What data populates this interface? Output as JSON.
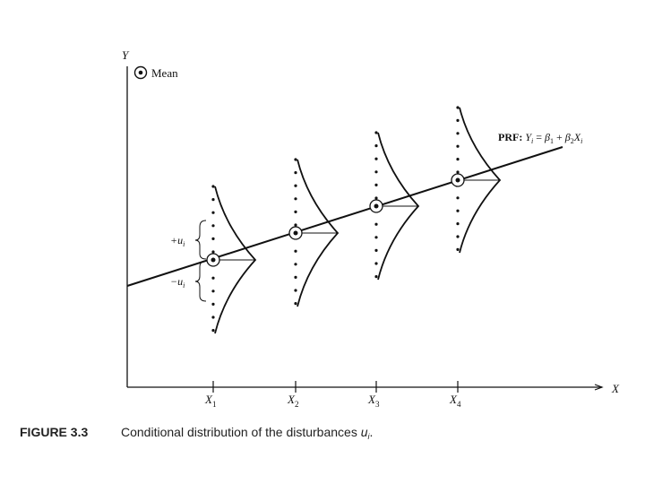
{
  "axes": {
    "y_label": "Y",
    "x_label": "X",
    "x_ticks": [
      {
        "base": "X",
        "sub": "1"
      },
      {
        "base": "X",
        "sub": "2"
      },
      {
        "base": "X",
        "sub": "3"
      },
      {
        "base": "X",
        "sub": "4"
      }
    ]
  },
  "legend": {
    "label": "Mean"
  },
  "prf": {
    "prefix": "PRF: ",
    "y": "Y",
    "y_sub": "i",
    "eq": " = ",
    "b1": "β",
    "b1_sub": "1",
    "plus": " + ",
    "b2": "β",
    "b2_sub": "2",
    "x": "X",
    "x_sub": "i"
  },
  "disturbances": {
    "plus": "+u",
    "plus_sub": "i",
    "minus": "−u",
    "minus_sub": "i"
  },
  "caption": {
    "label": "FIGURE 3.3",
    "text_main": "Conditional distribution of the disturbances ",
    "text_var": "u",
    "text_sub": "i",
    "text_end": "."
  },
  "colors": {
    "ink": "#111111"
  }
}
